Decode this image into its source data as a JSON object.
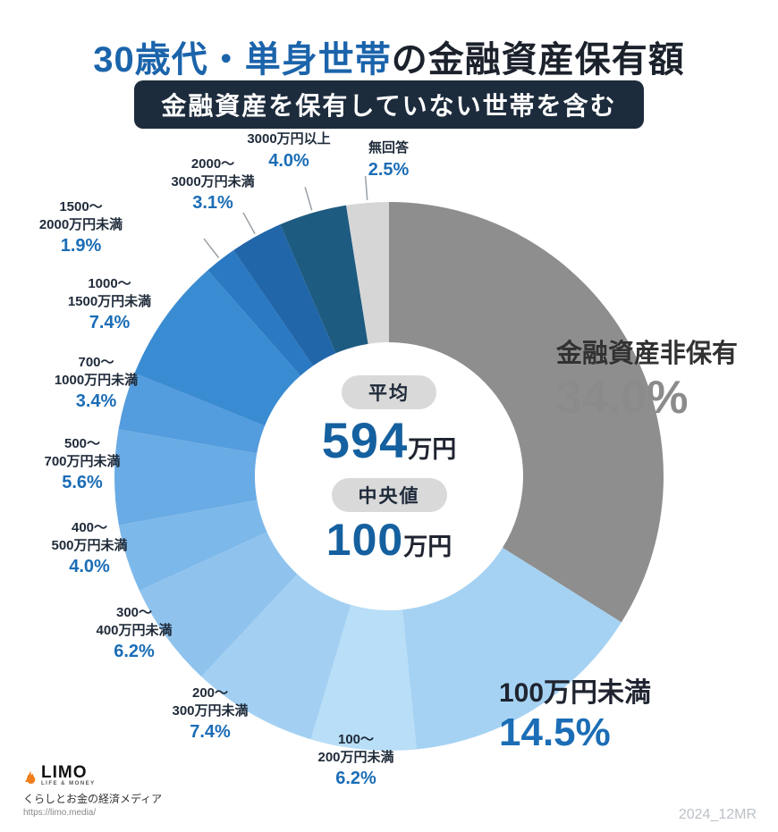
{
  "page": {
    "title": {
      "highlight": "30歳代・単身世帯",
      "rest": "の金融資産保有額"
    },
    "subtitle": "金融資産を保有していない世帯を含む",
    "center": {
      "avg_label": "平均",
      "avg_value": "594",
      "avg_unit": "万円",
      "median_label": "中央値",
      "median_value": "100",
      "median_unit": "万円"
    },
    "footer": {
      "logo": "LIMO",
      "logo_sub": "LIFE & MONEY",
      "tagline": "くらしとお金の経済メディア",
      "url": "https://limo.media/",
      "watermark": "2024_12MR"
    }
  },
  "chart_data": {
    "type": "pie",
    "donut": true,
    "title": "30歳代・単身世帯の金融資産保有額",
    "subtitle": "金融資産を保有していない世帯を含む",
    "unit": "%",
    "start_angle_deg": -90,
    "direction": "clockwise",
    "center_stats": [
      {
        "label": "平均",
        "value": "594万円"
      },
      {
        "label": "中央値",
        "value": "100万円"
      }
    ],
    "segments": [
      {
        "label": "金融資産非保有",
        "value": 34.0,
        "pct": "34.0%",
        "color": "#8e8e8e",
        "lines": [
          "金融資産非保有"
        ],
        "leader": false
      },
      {
        "label": "100万円未満",
        "value": 14.5,
        "pct": "14.5%",
        "color": "#a5d2f3",
        "lines": [
          "100万円未満"
        ],
        "leader": false
      },
      {
        "label": "100〜200万円未満",
        "value": 6.2,
        "pct": "6.2%",
        "color": "#b9def7",
        "lines": [
          "100〜",
          "200万円未満"
        ],
        "leader": false
      },
      {
        "label": "200〜300万円未満",
        "value": 7.4,
        "pct": "7.4%",
        "color": "#a3d0f2",
        "lines": [
          "200〜",
          "300万円未満"
        ],
        "leader": false
      },
      {
        "label": "300〜400万円未満",
        "value": 6.2,
        "pct": "6.2%",
        "color": "#8fc3ee",
        "lines": [
          "300〜",
          "400万円未満"
        ],
        "leader": false
      },
      {
        "label": "400〜500万円未満",
        "value": 4.0,
        "pct": "4.0%",
        "color": "#7db8ea",
        "lines": [
          "400〜",
          "500万円未満"
        ],
        "leader": false
      },
      {
        "label": "500〜700万円未満",
        "value": 5.6,
        "pct": "5.6%",
        "color": "#69abe4",
        "lines": [
          "500〜",
          "700万円未満"
        ],
        "leader": false
      },
      {
        "label": "700〜1000万円未満",
        "value": 3.4,
        "pct": "3.4%",
        "color": "#539cdd",
        "lines": [
          "700〜",
          "1000万円未満"
        ],
        "leader": false
      },
      {
        "label": "1000〜1500万円未満",
        "value": 7.4,
        "pct": "7.4%",
        "color": "#3a8cd2",
        "lines": [
          "1000〜",
          "1500万円未満"
        ],
        "leader": false
      },
      {
        "label": "1500〜2000万円未満",
        "value": 1.9,
        "pct": "1.9%",
        "color": "#2a79c2",
        "lines": [
          "1500〜",
          "2000万円未満"
        ],
        "leader": true
      },
      {
        "label": "2000〜3000万円未満",
        "value": 3.1,
        "pct": "3.1%",
        "color": "#2166a9",
        "lines": [
          "2000〜",
          "3000万円未満"
        ],
        "leader": true
      },
      {
        "label": "3000万円以上",
        "value": 4.0,
        "pct": "4.0%",
        "color": "#1d5b81",
        "lines": [
          "3000万円以上"
        ],
        "leader": true
      },
      {
        "label": "無回答",
        "value": 2.5,
        "pct": "2.5%",
        "color": "#d6d6d6",
        "lines": [
          "無回答"
        ],
        "leader": true
      }
    ]
  }
}
